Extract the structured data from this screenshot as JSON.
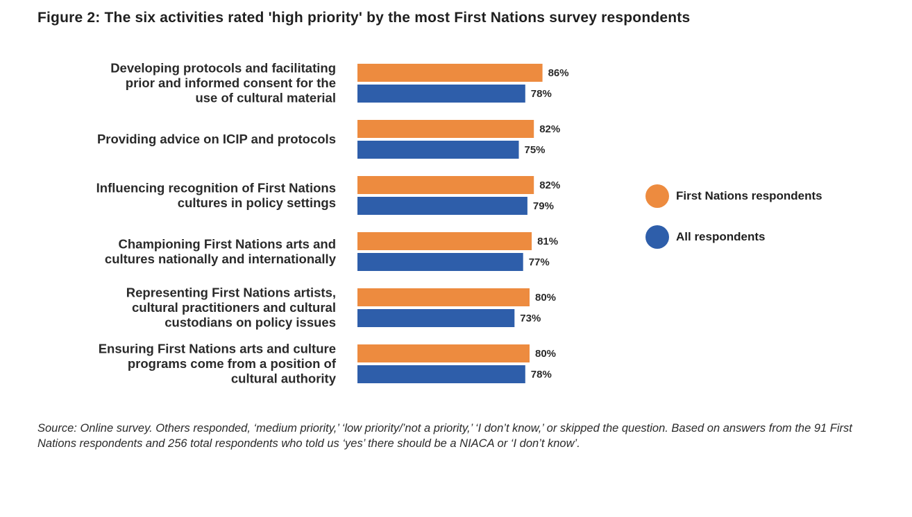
{
  "title": "Figure 2: The six activities rated 'high priority' by the most First Nations survey respondents",
  "chart_data": {
    "type": "bar",
    "orientation": "horizontal",
    "title": "Figure 2: The six activities rated 'high priority' by the most First Nations survey respondents",
    "categories": [
      [
        "Developing protocols and facilitating",
        "prior and informed consent for the",
        "use of cultural material"
      ],
      [
        "Providing advice on ICIP and protocols"
      ],
      [
        "Influencing recognition of First Nations",
        "cultures in policy settings"
      ],
      [
        "Championing First Nations arts and",
        "cultures nationally and internationally"
      ],
      [
        "Representing First Nations artists,",
        "cultural practitioners and cultural",
        "custodians on policy issues"
      ],
      [
        "Ensuring First Nations arts and culture",
        "programs come from a position of",
        "cultural authority"
      ]
    ],
    "series": [
      {
        "name": "First Nations respondents",
        "color": "#ED8B3F",
        "values": [
          86,
          82,
          82,
          81,
          80,
          80
        ],
        "labels": [
          "86%",
          "82%",
          "82%",
          "81%",
          "80%",
          "80%"
        ]
      },
      {
        "name": "All respondents",
        "color": "#2E5EAA",
        "values": [
          78,
          75,
          79,
          77,
          73,
          78
        ],
        "labels": [
          "78%",
          "75%",
          "79%",
          "77%",
          "73%",
          "78%"
        ]
      }
    ],
    "xlim": [
      0,
      100
    ],
    "xlabel": "",
    "ylabel": "",
    "grid": false,
    "legend_position": "right"
  },
  "legend": [
    {
      "label": "First Nations respondents",
      "color": "#ED8B3F"
    },
    {
      "label": "All respondents",
      "color": "#2E5EAA"
    }
  ],
  "source": "Source: Online survey. Others responded, ‘medium priority,’ ‘low priority/’not a priority,’ ‘I don’t know,’ or skipped the question. Based on answers from the 91 First Nations respondents and 256 total respondents who told us ‘yes’ there should be a NIACA or ‘I don’t know’."
}
